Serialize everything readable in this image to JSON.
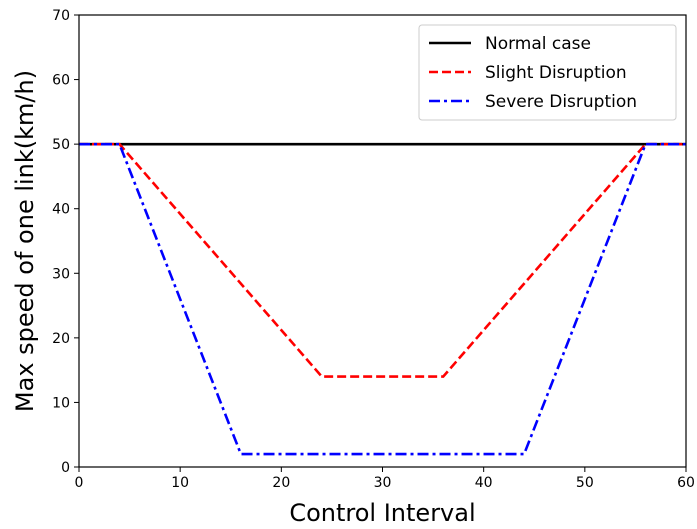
{
  "chart_data": {
    "type": "line",
    "xlabel": "Control Interval",
    "ylabel": "Max speed of one link(km/h)",
    "xlim": [
      0,
      60
    ],
    "ylim": [
      0,
      70
    ],
    "xticks": [
      0,
      10,
      20,
      30,
      40,
      50,
      60
    ],
    "yticks": [
      0,
      10,
      20,
      30,
      40,
      50,
      60,
      70
    ],
    "grid": false,
    "legend_position": "top-right",
    "series": [
      {
        "name": "Normal case",
        "color": "#000000",
        "style": "solid",
        "points": [
          [
            0,
            50
          ],
          [
            60,
            50
          ]
        ]
      },
      {
        "name": "Slight Disruption",
        "color": "#ff0000",
        "style": "dashed",
        "points": [
          [
            0,
            50
          ],
          [
            4,
            50
          ],
          [
            24,
            14
          ],
          [
            36,
            14
          ],
          [
            56,
            50
          ],
          [
            60,
            50
          ]
        ]
      },
      {
        "name": "Severe Disruption",
        "color": "#0000ff",
        "style": "dashdot",
        "points": [
          [
            0,
            50
          ],
          [
            4,
            50
          ],
          [
            16,
            2
          ],
          [
            44,
            2
          ],
          [
            56,
            50
          ],
          [
            60,
            50
          ]
        ]
      }
    ]
  }
}
